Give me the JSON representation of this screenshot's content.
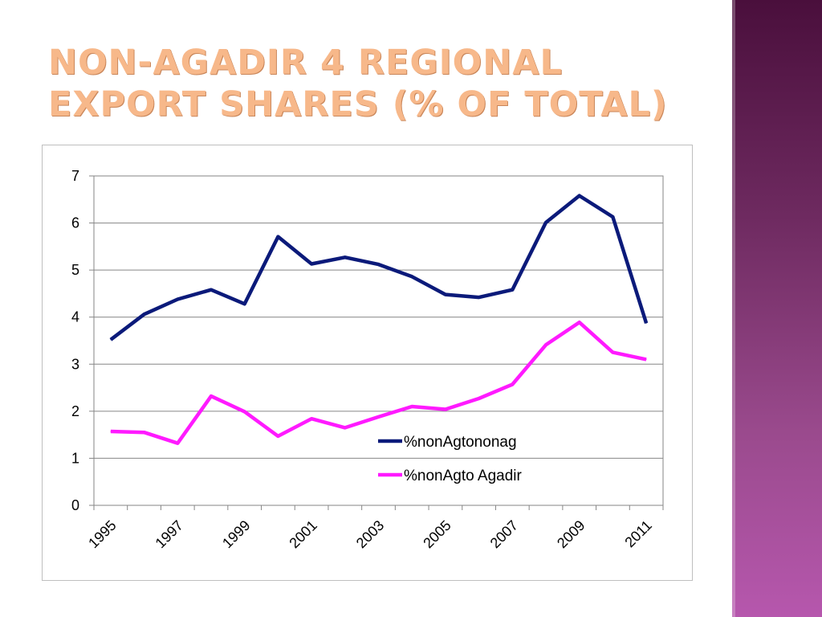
{
  "slide": {
    "title_line1": "Non-Agadir 4 regional",
    "title_line2": "export shares (% of total)"
  },
  "colors": {
    "title": "#f7b88a",
    "series_1": "#0b1a7a",
    "series_2": "#ff1aff",
    "side_band_top": "#4a0f3c",
    "side_band_bottom": "#b657ad"
  },
  "chart_data": {
    "type": "line",
    "x": [
      1995,
      1996,
      1997,
      1998,
      1999,
      2000,
      2001,
      2002,
      2003,
      2004,
      2005,
      2006,
      2007,
      2008,
      2009,
      2010,
      2011
    ],
    "x_tick_labels": [
      "1995",
      "1997",
      "1999",
      "2001",
      "2003",
      "2005",
      "2007",
      "2009",
      "2011"
    ],
    "y_tick_labels": [
      "0",
      "1",
      "2",
      "3",
      "4",
      "5",
      "6",
      "7"
    ],
    "ylim": [
      0,
      7
    ],
    "grid": true,
    "legend_position": "inside-lower-right",
    "series": [
      {
        "name": "%nonAgtononag",
        "color": "#0b1a7a",
        "values": [
          3.52,
          4.06,
          4.38,
          4.58,
          4.28,
          5.71,
          5.13,
          5.27,
          5.12,
          4.86,
          4.48,
          4.42,
          4.58,
          6.01,
          6.58,
          6.13,
          3.87
        ]
      },
      {
        "name": "%nonAgto Agadir",
        "color": "#ff1aff",
        "values": [
          1.57,
          1.55,
          1.32,
          2.32,
          1.99,
          1.47,
          1.84,
          1.65,
          1.88,
          2.1,
          2.04,
          2.27,
          2.57,
          3.41,
          3.89,
          3.25,
          3.1
        ]
      }
    ]
  }
}
